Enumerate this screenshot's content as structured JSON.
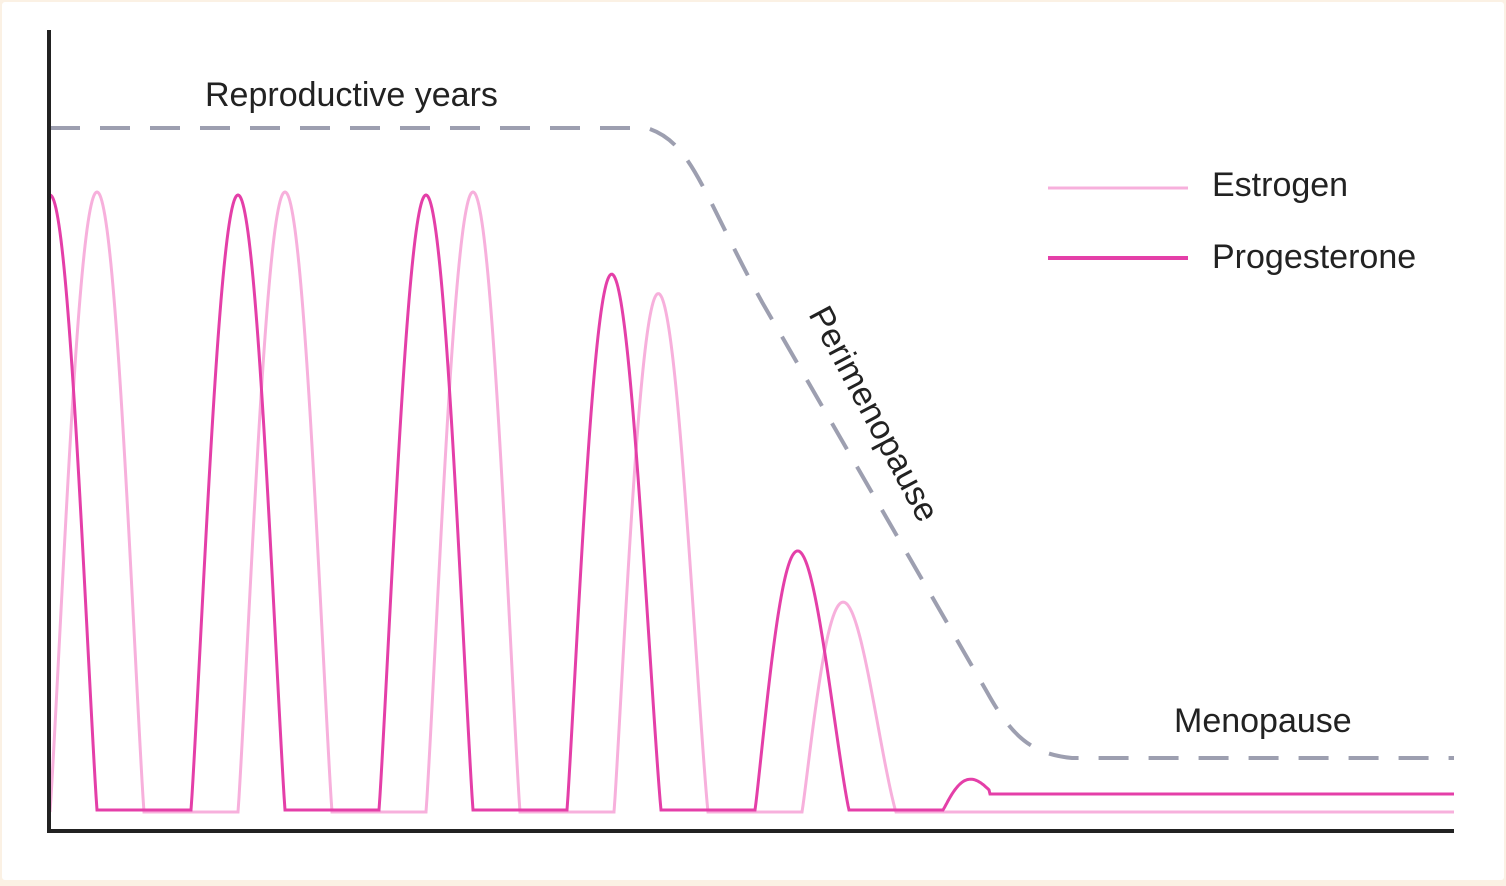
{
  "chart_data": {
    "type": "line",
    "title": "",
    "xlabel": "",
    "ylabel": "",
    "grid": false,
    "legend_position": "top-right",
    "colors": {
      "estrogen": "#f7b0dc",
      "progesterone": "#e43fa8",
      "reproductive_levels": "#9d9fb0",
      "axis": "#222222"
    },
    "series": [
      {
        "name": "Estrogen"
      },
      {
        "name": "Progesterone"
      }
    ],
    "annotations": {
      "reproductive": "Reproductive years",
      "perimenopause": "Perimenopause",
      "menopause": "Menopause"
    }
  }
}
